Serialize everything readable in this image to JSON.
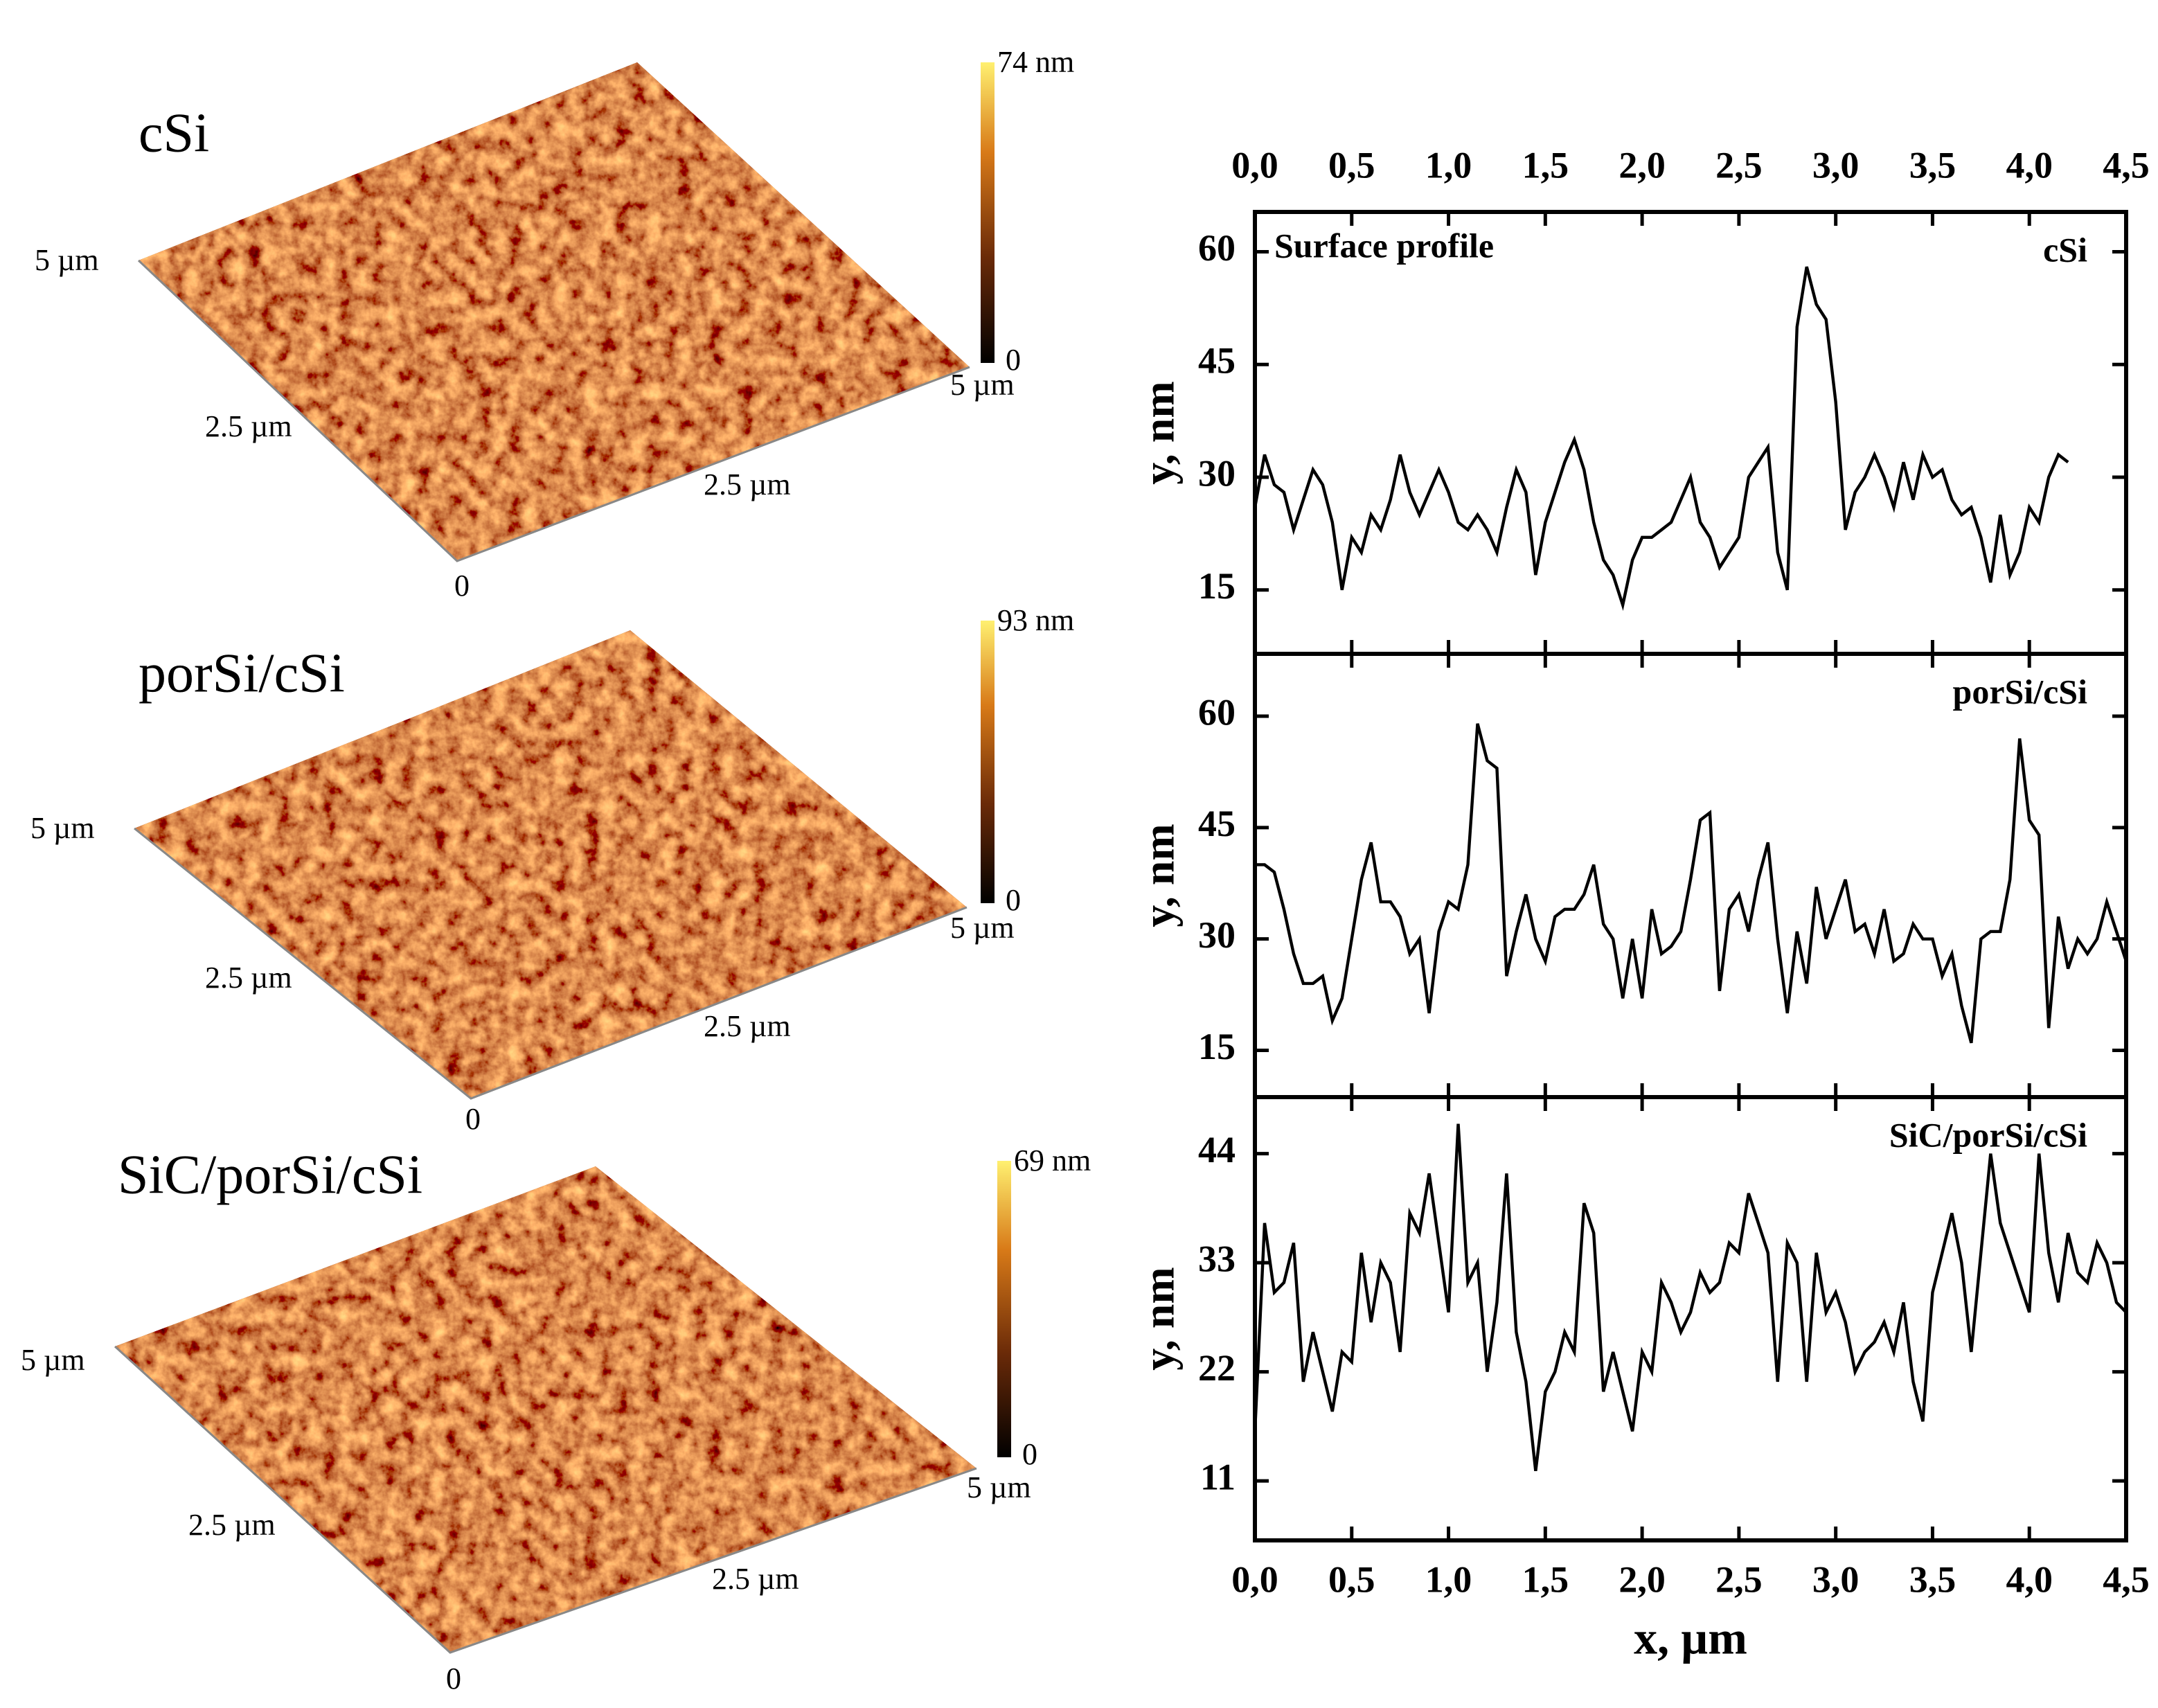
{
  "afm_panels": [
    {
      "title": "cSi",
      "scale_max": "74 nm",
      "scale_min": "0",
      "labels": [
        "5 µm",
        "2.5 µm",
        "5 µm",
        "2.5 µm",
        "0"
      ]
    },
    {
      "title": "porSi/cSi",
      "scale_max": "93 nm",
      "scale_min": "0",
      "labels": [
        "5 µm",
        "2.5 µm",
        "5 µm",
        "2.5 µm",
        "0"
      ]
    },
    {
      "title": "SiC/porSi/cSi",
      "scale_max": "69 nm",
      "scale_min": "0",
      "labels": [
        "5 µm",
        "2.5 µm",
        "5 µm",
        "2.5 µm",
        "0"
      ]
    }
  ],
  "chart_data": [
    {
      "type": "line",
      "annotation": "Surface profile",
      "ylabel": "y, nm",
      "x": [
        0,
        0.05,
        0.1,
        0.15,
        0.2,
        0.25,
        0.3,
        0.35,
        0.4,
        0.45,
        0.5,
        0.55,
        0.6,
        0.65,
        0.7,
        0.75,
        0.8,
        0.85,
        0.9,
        0.95,
        1,
        1.05,
        1.1,
        1.15,
        1.2,
        1.25,
        1.3,
        1.35,
        1.4,
        1.45,
        1.5,
        1.55,
        1.6,
        1.65,
        1.7,
        1.75,
        1.8,
        1.85,
        1.9,
        1.95,
        2,
        2.05,
        2.1,
        2.15,
        2.2,
        2.25,
        2.3,
        2.35,
        2.4,
        2.45,
        2.5,
        2.55,
        2.6,
        2.65,
        2.7,
        2.75,
        2.8,
        2.85,
        2.9,
        2.95,
        3,
        3.05,
        3.1,
        3.15,
        3.2,
        3.25,
        3.3,
        3.35,
        3.4,
        3.45,
        3.5,
        3.55,
        3.6,
        3.65,
        3.7,
        3.75,
        3.8,
        3.85,
        3.9,
        3.95,
        4,
        4.05,
        4.1,
        4.15,
        4.2
      ],
      "series": [
        {
          "name": "cSi",
          "color": "#000000",
          "values": [
            26,
            33,
            29,
            28,
            23,
            27,
            31,
            29,
            24,
            15,
            22,
            20,
            25,
            23,
            27,
            33,
            28,
            25,
            28,
            31,
            28,
            24,
            23,
            25,
            23,
            20,
            26,
            31,
            28,
            17,
            24,
            28,
            32,
            35,
            31,
            24,
            19,
            17,
            13,
            19,
            22,
            22,
            23,
            24,
            27,
            30,
            24,
            22,
            18,
            20,
            22,
            30,
            32,
            34,
            20,
            15,
            50,
            58,
            53,
            51,
            40,
            23,
            28,
            30,
            33,
            30,
            26,
            32,
            27,
            33,
            30,
            31,
            27,
            25,
            26,
            22,
            16,
            25,
            17,
            20,
            26,
            24,
            30,
            33,
            32
          ]
        }
      ],
      "xlim": [
        0,
        4.5
      ],
      "ylim": [
        6.5,
        65.3
      ],
      "xticks": [
        {
          "value": 0,
          "label": "0,0"
        },
        {
          "value": 0.5,
          "label": "0,5"
        },
        {
          "value": 1,
          "label": "1,0"
        },
        {
          "value": 1.5,
          "label": "1,5"
        },
        {
          "value": 2,
          "label": "2,0"
        },
        {
          "value": 2.5,
          "label": "2,5"
        },
        {
          "value": 3,
          "label": "3,0"
        },
        {
          "value": 3.5,
          "label": "3,5"
        },
        {
          "value": 4,
          "label": "4,0"
        },
        {
          "value": 4.5,
          "label": "4,5"
        }
      ],
      "yticks": [
        15,
        30,
        45,
        60
      ]
    },
    {
      "type": "line",
      "ylabel": "y, nm",
      "x": [
        0,
        0.05,
        0.1,
        0.15,
        0.2,
        0.25,
        0.3,
        0.35,
        0.4,
        0.45,
        0.5,
        0.55,
        0.6,
        0.65,
        0.7,
        0.75,
        0.8,
        0.85,
        0.9,
        0.95,
        1,
        1.05,
        1.1,
        1.15,
        1.2,
        1.25,
        1.3,
        1.35,
        1.4,
        1.45,
        1.5,
        1.55,
        1.6,
        1.65,
        1.7,
        1.75,
        1.8,
        1.85,
        1.9,
        1.95,
        2,
        2.05,
        2.1,
        2.15,
        2.2,
        2.25,
        2.3,
        2.35,
        2.4,
        2.45,
        2.5,
        2.55,
        2.6,
        2.65,
        2.7,
        2.75,
        2.8,
        2.85,
        2.9,
        2.95,
        3,
        3.05,
        3.1,
        3.15,
        3.2,
        3.25,
        3.3,
        3.35,
        3.4,
        3.45,
        3.5,
        3.55,
        3.6,
        3.65,
        3.7,
        3.75,
        3.8,
        3.85,
        3.9,
        3.95,
        4,
        4.05,
        4.1,
        4.15,
        4.2,
        4.25,
        4.3,
        4.35,
        4.4,
        4.45,
        4.5
      ],
      "series": [
        {
          "name": "porSi/cSi",
          "color": "#000000",
          "values": [
            40,
            40,
            39,
            34,
            28,
            24,
            24,
            25,
            19,
            22,
            30,
            38,
            43,
            35,
            35,
            33,
            28,
            30,
            20,
            31,
            35,
            34,
            40,
            59,
            54,
            53,
            25,
            31,
            36,
            30,
            27,
            33,
            34,
            34,
            36,
            40,
            32,
            30,
            22,
            30,
            22,
            34,
            28,
            29,
            31,
            38,
            46,
            47,
            23,
            34,
            36,
            31,
            38,
            43,
            30,
            20,
            31,
            24,
            37,
            30,
            34,
            38,
            31,
            32,
            28,
            34,
            27,
            28,
            32,
            30,
            30,
            25,
            28,
            21,
            16,
            30,
            31,
            31,
            38,
            57,
            46,
            44,
            18,
            33,
            26,
            30,
            28,
            30,
            35,
            31,
            27
          ]
        }
      ],
      "xlim": [
        0,
        4.5
      ],
      "ylim": [
        8.7,
        68.4
      ],
      "xticks": [
        {
          "value": 0,
          "label": "0,0"
        },
        {
          "value": 0.5,
          "label": "0,5"
        },
        {
          "value": 1,
          "label": "1,0"
        },
        {
          "value": 1.5,
          "label": "1,5"
        },
        {
          "value": 2,
          "label": "2,0"
        },
        {
          "value": 2.5,
          "label": "2,5"
        },
        {
          "value": 3,
          "label": "3,0"
        },
        {
          "value": 3.5,
          "label": "3,5"
        },
        {
          "value": 4,
          "label": "4,0"
        },
        {
          "value": 4.5,
          "label": "4,5"
        }
      ],
      "yticks": [
        15,
        30,
        45,
        60
      ]
    },
    {
      "type": "line",
      "ylabel": "y, nm",
      "xlabel": "x, µm",
      "x": [
        0,
        0.05,
        0.1,
        0.15,
        0.2,
        0.25,
        0.3,
        0.35,
        0.4,
        0.45,
        0.5,
        0.55,
        0.6,
        0.65,
        0.7,
        0.75,
        0.8,
        0.85,
        0.9,
        0.95,
        1,
        1.05,
        1.1,
        1.15,
        1.2,
        1.25,
        1.3,
        1.35,
        1.4,
        1.45,
        1.5,
        1.55,
        1.6,
        1.65,
        1.7,
        1.75,
        1.8,
        1.85,
        1.9,
        1.95,
        2,
        2.05,
        2.1,
        2.15,
        2.2,
        2.25,
        2.3,
        2.35,
        2.4,
        2.45,
        2.5,
        2.55,
        2.6,
        2.65,
        2.7,
        2.75,
        2.8,
        2.85,
        2.9,
        2.95,
        3,
        3.05,
        3.1,
        3.15,
        3.2,
        3.25,
        3.3,
        3.35,
        3.4,
        3.45,
        3.5,
        3.55,
        3.6,
        3.65,
        3.7,
        3.75,
        3.8,
        3.85,
        3.9,
        3.95,
        4,
        4.05,
        4.1,
        4.15,
        4.2,
        4.25,
        4.3,
        4.35,
        4.4,
        4.45,
        4.5
      ],
      "series": [
        {
          "name": "SiC/porSi/cSi",
          "color": "#000000",
          "values": [
            16,
            37,
            30,
            31,
            35,
            21,
            26,
            22,
            18,
            24,
            23,
            34,
            27,
            33,
            31,
            24,
            38,
            36,
            42,
            35,
            28,
            47,
            31,
            33,
            22,
            29,
            42,
            26,
            21,
            12,
            20,
            22,
            26,
            24,
            39,
            36,
            20,
            24,
            20,
            16,
            24,
            22,
            31,
            29,
            26,
            28,
            32,
            30,
            31,
            35,
            34,
            40,
            37,
            34,
            21,
            35,
            33,
            21,
            34,
            28,
            30,
            27,
            22,
            24,
            25,
            27,
            24,
            29,
            21,
            17,
            30,
            34,
            38,
            33,
            24,
            34,
            44,
            37,
            34,
            31,
            28,
            44,
            34,
            29,
            36,
            32,
            31,
            35,
            33,
            29,
            28
          ]
        }
      ],
      "xlim": [
        0,
        4.5
      ],
      "ylim": [
        5,
        49.7
      ],
      "xticks": [
        {
          "value": 0,
          "label": "0,0"
        },
        {
          "value": 0.5,
          "label": "0,5"
        },
        {
          "value": 1,
          "label": "1,0"
        },
        {
          "value": 1.5,
          "label": "1,5"
        },
        {
          "value": 2,
          "label": "2,0"
        },
        {
          "value": 2.5,
          "label": "2,5"
        },
        {
          "value": 3,
          "label": "3,0"
        },
        {
          "value": 3.5,
          "label": "3,5"
        },
        {
          "value": 4,
          "label": "4,0"
        },
        {
          "value": 4.5,
          "label": "4,5"
        }
      ],
      "yticks": [
        11,
        22,
        33,
        44
      ]
    }
  ]
}
